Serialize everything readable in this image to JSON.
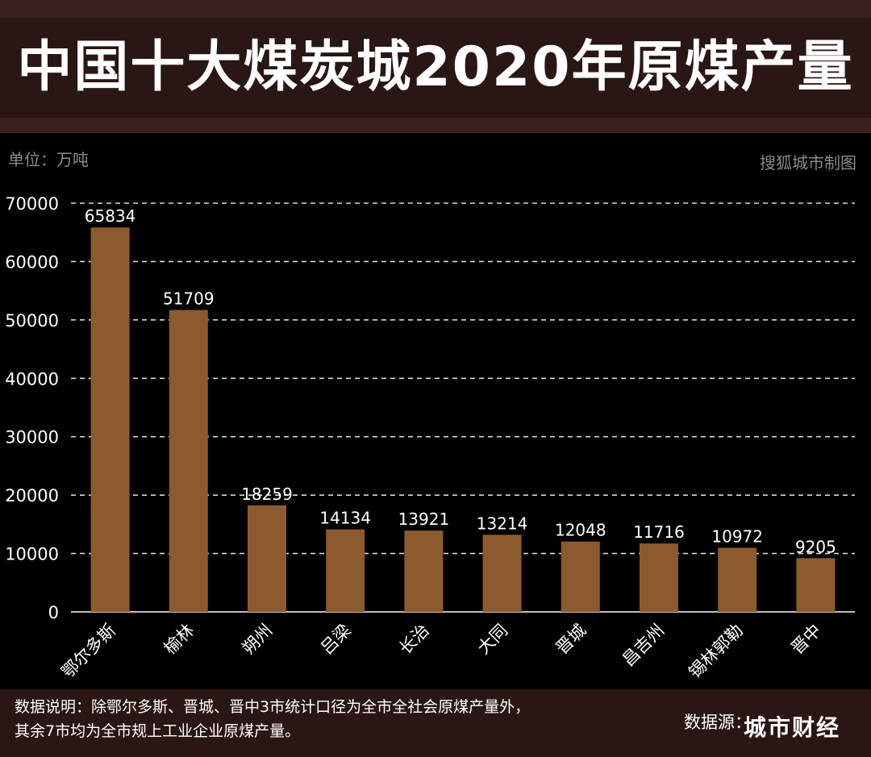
{
  "title": "中国十大煤炭城2020年原煤产量",
  "unit_label": "单位：万吨",
  "credit": "搜狐城市制图",
  "note": "数据说明：除鄂尔多斯、晋城、晋中3市统计口径为全市全社会原煤产量外，其余7市均为全市规上工业企业原煤产量。",
  "source": "数据源：",
  "watermark": "城市财经",
  "colors": {
    "bar": "#8c5a2e",
    "background": "#000000",
    "header": "#2a1614"
  },
  "chart_data": {
    "type": "bar",
    "title": "中国十大煤炭城2020年原煤产量",
    "xlabel": "",
    "ylabel": "单位：万吨",
    "categories": [
      "鄂尔多斯",
      "榆林",
      "朔州",
      "吕梁",
      "长治",
      "大同",
      "晋城",
      "昌吉州",
      "锡林郭勒",
      "晋中"
    ],
    "values": [
      65834,
      51709,
      18259,
      14134,
      13921,
      13214,
      12048,
      11716,
      10972,
      9205
    ],
    "yticks": [
      0,
      10000,
      20000,
      30000,
      40000,
      50000,
      60000,
      70000
    ],
    "ylim": [
      0,
      70000
    ],
    "grid": true,
    "data_labels": true
  }
}
